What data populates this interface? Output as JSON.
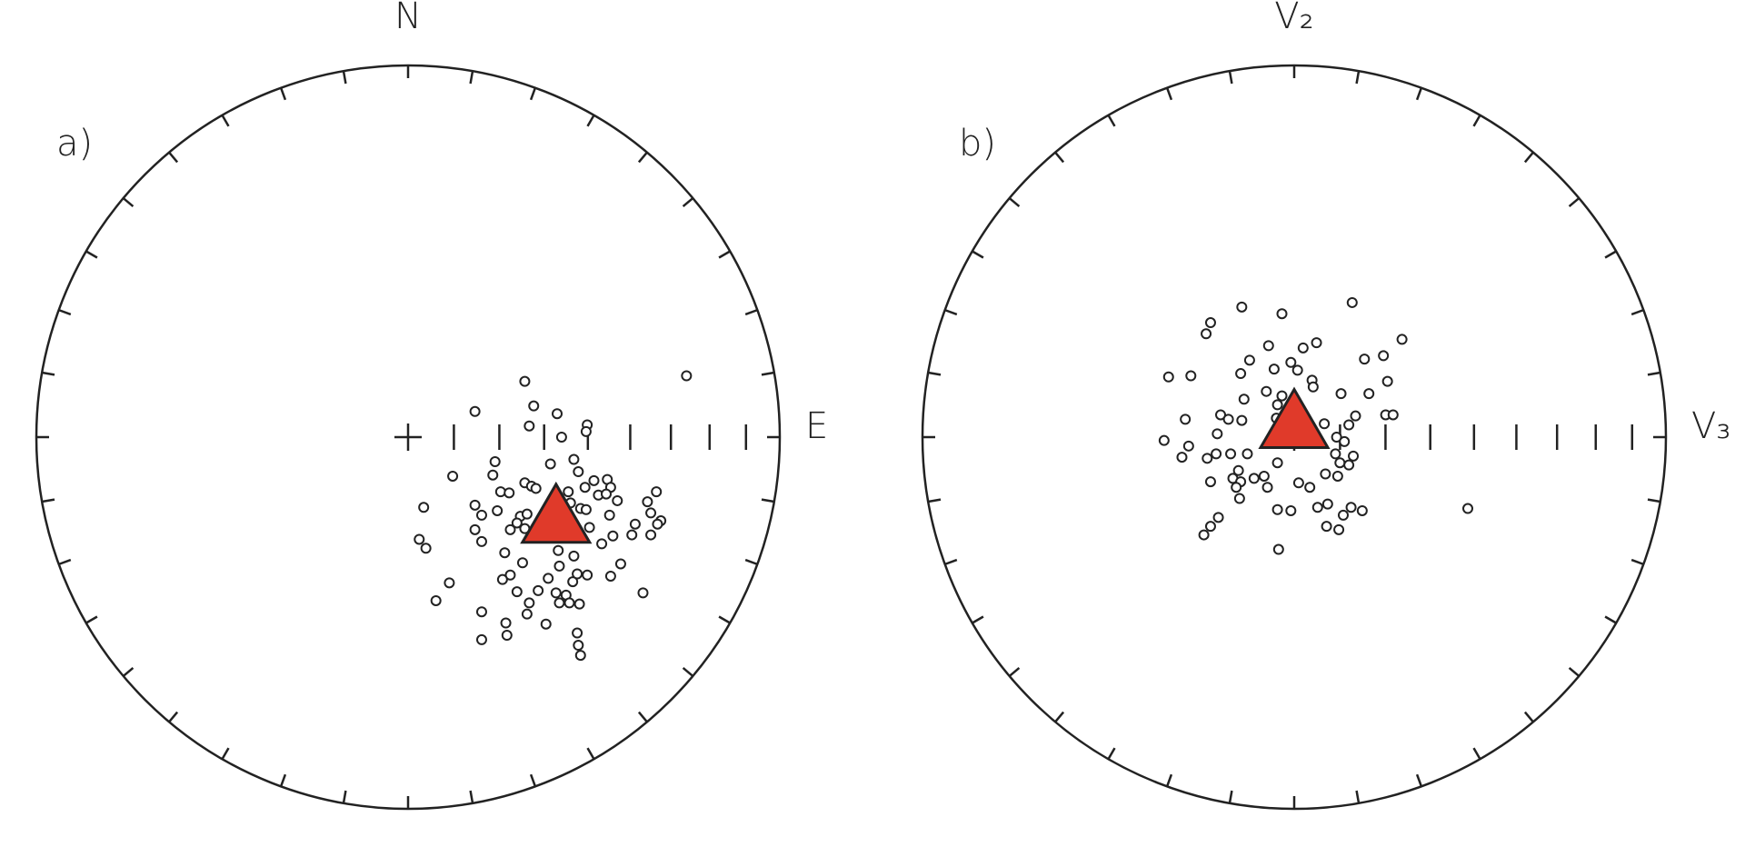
{
  "chart_data": [
    {
      "type": "stereonet",
      "panel": "a)",
      "top_label": "N",
      "right_label": "E",
      "xlim": [
        -1,
        1
      ],
      "ylim": [
        -1,
        1
      ],
      "series": [
        {
          "marker": "circle",
          "color": "#ffffff",
          "x": [
            0.749,
            0.314,
            0.18,
            0.338,
            0.401,
            0.482,
            0.479,
            0.413,
            0.326,
            0.234,
            0.228,
            0.12,
            0.383,
            0.446,
            0.458,
            0.314,
            0.332,
            0.344,
            0.249,
            0.272,
            0.431,
            0.476,
            0.5,
            0.536,
            0.545,
            0.512,
            0.533,
            0.668,
            0.563,
            0.644,
            0.042,
            0.18,
            0.24,
            0.198,
            0.302,
            0.32,
            0.437,
            0.464,
            0.479,
            0.542,
            0.653,
            0.611,
            0.68,
            0.671,
            0.18,
            0.275,
            0.03,
            0.048,
            0.198,
            0.551,
            0.602,
            0.653,
            0.521,
            0.26,
            0.404,
            0.446,
            0.308,
            0.407,
            0.572,
            0.275,
            0.455,
            0.482,
            0.545,
            0.254,
            0.377,
            0.111,
            0.443,
            0.35,
            0.293,
            0.398,
            0.425,
            0.632,
            0.075,
            0.326,
            0.434,
            0.407,
            0.461,
            0.198,
            0.32,
            0.263,
            0.371,
            0.266,
            0.455,
            0.198,
            0.458,
            0.464,
            0.293,
            0.314,
            0.488
          ],
          "values": [
            0.165,
            0.15,
            0.069,
            0.084,
            0.063,
            0.033,
            0.015,
            0,
            0.03,
            -0.066,
            -0.102,
            -0.105,
            -0.072,
            -0.06,
            -0.093,
            -0.123,
            -0.132,
            -0.138,
            -0.147,
            -0.15,
            -0.147,
            -0.135,
            -0.117,
            -0.114,
            -0.135,
            -0.156,
            -0.153,
            -0.147,
            -0.171,
            -0.174,
            -0.189,
            -0.183,
            -0.198,
            -0.21,
            -0.213,
            -0.207,
            -0.177,
            -0.192,
            -0.195,
            -0.21,
            -0.204,
            -0.234,
            -0.225,
            -0.234,
            -0.249,
            -0.249,
            -0.275,
            -0.299,
            -0.281,
            -0.266,
            -0.263,
            -0.263,
            -0.287,
            -0.311,
            -0.305,
            -0.32,
            -0.338,
            -0.347,
            -0.341,
            -0.371,
            -0.368,
            -0.371,
            -0.374,
            -0.383,
            -0.38,
            -0.392,
            -0.389,
            -0.413,
            -0.416,
            -0.419,
            -0.425,
            -0.419,
            -0.44,
            -0.446,
            -0.446,
            -0.446,
            -0.449,
            -0.47,
            -0.476,
            -0.5,
            -0.503,
            -0.533,
            -0.527,
            -0.545,
            -0.56,
            -0.587,
            -0.231,
            -0.246,
            -0.243
          ]
        },
        {
          "marker": "triangle",
          "color": "#e03a2a",
          "x": [
            0.398
          ],
          "values": [
            -0.231
          ]
        }
      ]
    },
    {
      "type": "stereonet",
      "panel": "b)",
      "top_label": "V₂",
      "right_label": "V₃",
      "xlim": [
        -1,
        1
      ],
      "ylim": [
        -1,
        1
      ],
      "series": [
        {
          "marker": "circle",
          "color": "#ffffff",
          "x": [
            0.156,
            -0.141,
            -0.033,
            -0.225,
            -0.237,
            0.29,
            0.06,
            0.024,
            -0.069,
            0.24,
            0.189,
            -0.12,
            -0.009,
            -0.054,
            0.009,
            -0.144,
            -0.338,
            -0.278,
            0.048,
            0.251,
            0.051,
            -0.075,
            0.126,
            0.201,
            -0.033,
            -0.135,
            -0.045,
            -0.198,
            -0.177,
            -0.293,
            -0.141,
            0.246,
            0.266,
            0.165,
            -0.048,
            0.081,
            0.147,
            -0.207,
            0.114,
            -0.35,
            0.135,
            -0.284,
            -0.21,
            -0.171,
            -0.126,
            -0.302,
            -0.234,
            0.111,
            0.159,
            0.123,
            0.147,
            -0.045,
            -0.15,
            0.084,
            0.117,
            -0.225,
            -0.165,
            -0.144,
            -0.108,
            -0.081,
            -0.072,
            0.012,
            0.042,
            -0.156,
            -0.147,
            0.09,
            0.063,
            0.153,
            0.183,
            -0.045,
            -0.009,
            0.132,
            0.467,
            -0.204,
            0.087,
            0.12,
            -0.225,
            -0.243,
            -0.042
          ],
          "values": [
            0.362,
            0.35,
            0.332,
            0.308,
            0.278,
            0.263,
            0.254,
            0.24,
            0.246,
            0.219,
            0.21,
            0.207,
            0.201,
            0.183,
            0.18,
            0.171,
            0.162,
            0.165,
            0.153,
            0.15,
            0.135,
            0.123,
            0.117,
            0.117,
            0.111,
            0.102,
            0.087,
            0.06,
            0.048,
            0.048,
            0.045,
            0.06,
            0.06,
            0.057,
            0.051,
            0.036,
            0.033,
            0.009,
            0,
            -0.009,
            -0.012,
            -0.024,
            -0.045,
            -0.045,
            -0.045,
            -0.054,
            -0.057,
            -0.045,
            -0.051,
            -0.069,
            -0.075,
            -0.069,
            -0.09,
            -0.099,
            -0.105,
            -0.12,
            -0.111,
            -0.12,
            -0.111,
            -0.105,
            -0.135,
            -0.123,
            -0.135,
            -0.135,
            -0.165,
            -0.18,
            -0.189,
            -0.189,
            -0.198,
            -0.195,
            -0.198,
            -0.21,
            -0.192,
            -0.216,
            -0.24,
            -0.249,
            -0.24,
            -0.263,
            -0.302
          ]
        },
        {
          "marker": "triangle",
          "color": "#e03a2a",
          "x": [
            0
          ],
          "values": [
            0.024
          ]
        }
      ]
    }
  ]
}
